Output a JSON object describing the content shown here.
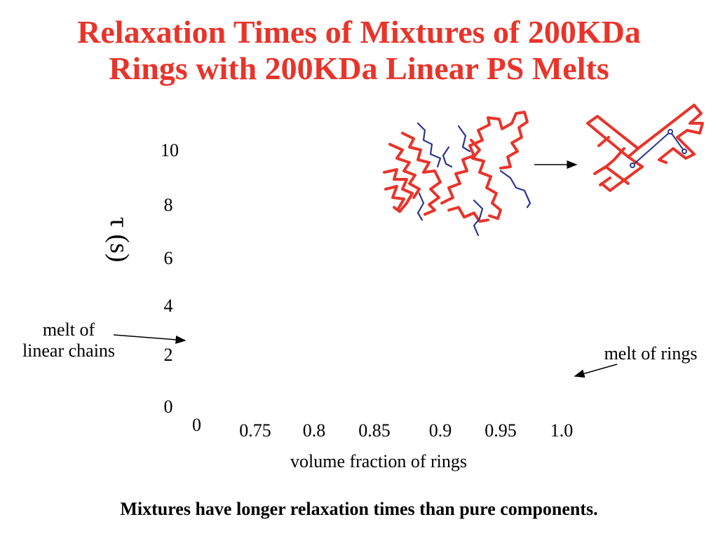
{
  "title_line1": "Relaxation Times of Mixtures of 200KDa",
  "title_line2": "Rings with 200KDa Linear PS Melts",
  "caption": "Mixtures have longer relaxation times than pure components.",
  "annotations": {
    "linear": [
      "melt of",
      "linear chains"
    ],
    "rings": "melt of rings"
  },
  "colors": {
    "title": "#e8342a",
    "ring": "#e8342a",
    "linear": "#2b3590"
  },
  "chart_data": {
    "type": "scatter",
    "title": "",
    "xlabel": "volume fraction of rings",
    "ylabel": "τ (s)",
    "y_ticks": [
      "0",
      "2",
      "4",
      "6",
      "8",
      "10"
    ],
    "x_ticks": [
      "0",
      "0.75",
      "0.8",
      "0.85",
      "0.9",
      "0.95",
      "1.0"
    ],
    "ylim": [
      0,
      10
    ],
    "series": []
  }
}
